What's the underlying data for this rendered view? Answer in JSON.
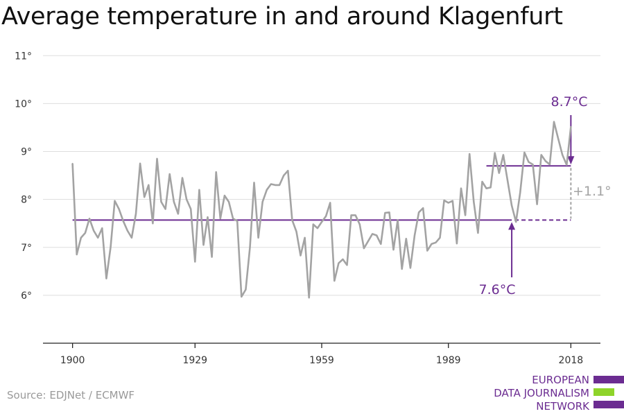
{
  "title": "Average temperature in and around Klagenfurt",
  "source": "Source: EDJNet / ECMWF",
  "logo": {
    "lines": [
      "EUROPEAN",
      "DATA JOURNALISM",
      "NETWORK"
    ]
  },
  "colors": {
    "series": "#a3a3a3",
    "accent": "#6b2c91",
    "diff": "#a3a3a3",
    "grid": "#dddddd",
    "axis": "#222222",
    "logo_green": "#8ed42a"
  },
  "chart_data": {
    "type": "line",
    "title": "Average temperature in and around Klagenfurt",
    "xlabel": "",
    "ylabel": "",
    "xlim": [
      1893,
      2025
    ],
    "ylim": [
      5,
      11.25
    ],
    "x_ticks": [
      1900,
      1929,
      1959,
      1989,
      2018
    ],
    "x_tick_labels": [
      "1900",
      "1929",
      "1959",
      "1989",
      "2018"
    ],
    "y_ticks": [
      6,
      7,
      8,
      9,
      10,
      11
    ],
    "y_tick_labels": [
      "6°",
      "7°",
      "8°",
      "9°",
      "10°",
      "11°"
    ],
    "grid": "horizontal",
    "series": [
      {
        "x_start": 1900,
        "values": [
          8.75,
          6.85,
          7.2,
          7.3,
          7.6,
          7.35,
          7.2,
          7.4,
          6.35,
          7.0,
          7.97,
          7.8,
          7.55,
          7.35,
          7.2,
          7.7,
          8.75,
          8.05,
          8.3,
          7.5,
          8.85,
          7.95,
          7.8,
          8.53,
          7.95,
          7.7,
          8.45,
          8.0,
          7.8,
          6.7,
          8.2,
          7.05,
          7.63,
          6.8,
          8.57,
          7.6,
          8.08,
          7.95,
          7.6,
          7.55,
          5.97,
          6.12,
          7.0,
          8.35,
          7.2,
          7.95,
          8.2,
          8.32,
          8.3,
          8.3,
          8.5,
          8.6,
          7.57,
          7.33,
          6.83,
          7.2,
          5.95,
          7.48,
          7.4,
          7.53,
          7.65,
          7.93,
          6.3,
          6.67,
          6.75,
          6.63,
          7.67,
          7.67,
          7.48,
          6.98,
          7.13,
          7.28,
          7.25,
          7.07,
          7.72,
          7.73,
          6.95,
          7.57,
          6.55,
          7.18,
          6.57,
          7.25,
          7.73,
          7.82,
          6.93,
          7.07,
          7.1,
          7.2,
          7.98,
          7.93,
          7.97,
          7.08,
          8.23,
          7.67,
          8.95,
          7.95,
          7.3,
          8.37,
          8.23,
          8.25,
          8.97,
          8.55,
          8.93,
          8.4,
          7.87,
          7.53,
          8.15,
          8.98,
          8.78,
          8.73,
          7.9,
          8.93,
          8.8,
          8.73,
          9.62,
          9.27,
          8.93,
          8.72,
          9.52
        ]
      }
    ],
    "annotations": {
      "baseline": {
        "value": 7.57,
        "label": "7.6°C",
        "x_from": 1900,
        "x_to": 2004,
        "dashed_to": 2018,
        "arrow_x": 2004
      },
      "recent": {
        "value": 8.7,
        "label": "8.7°C",
        "x_from": 1998,
        "x_to": 2018,
        "arrow_x": 2018
      },
      "difference": {
        "label": "+1.1°",
        "x": 2018
      }
    }
  }
}
